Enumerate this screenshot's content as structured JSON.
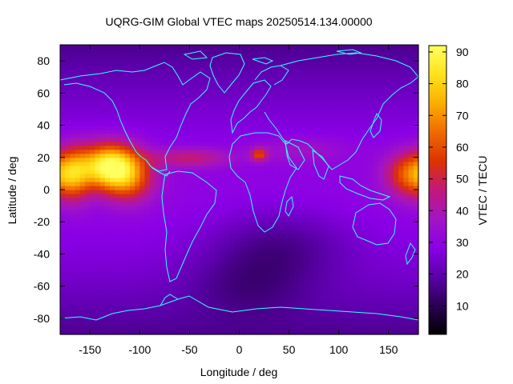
{
  "chart_data": {
    "type": "heatmap",
    "title": "UQRG-GIM Global VTEC maps 20250514.134.00000",
    "xlabel": "Longitude / deg",
    "ylabel": "Latitude / deg",
    "colorbar_label": "VTEC / TECU",
    "xlim": [
      -180,
      180
    ],
    "ylim": [
      -90,
      90
    ],
    "xticks": [
      -150,
      -100,
      -50,
      0,
      50,
      100,
      150
    ],
    "yticks": [
      -80,
      -60,
      -40,
      -20,
      0,
      20,
      40,
      60,
      80
    ],
    "clim": [
      1,
      92
    ],
    "colorbar_ticks": [
      10,
      20,
      30,
      40,
      50,
      60,
      70,
      80,
      90
    ],
    "colormap": [
      "#000000",
      "#2b0053",
      "#5a00a8",
      "#8a00e6",
      "#a314c4",
      "#c2187a",
      "#dd3300",
      "#f06a00",
      "#fbae00",
      "#ffe21a",
      "#ffff60"
    ],
    "coastline_color": "#33ffff",
    "grid_resolution_deg": {
      "lon": 5,
      "lat": 2.5
    },
    "features": [
      {
        "lon": -130,
        "lat": 15,
        "amp": 62,
        "slon": 30,
        "slat": 14
      },
      {
        "lon": -110,
        "lat": 5,
        "amp": 22,
        "slon": 25,
        "slat": 14
      },
      {
        "lon": -165,
        "lat": 10,
        "amp": 20,
        "slon": 16,
        "slat": 18
      },
      {
        "lon": 175,
        "lat": 10,
        "amp": 38,
        "slon": 26,
        "slat": 14
      },
      {
        "lon": 20,
        "lat": 22,
        "amp": 28,
        "slon": 8,
        "slat": 4
      },
      {
        "lon": -50,
        "lat": 20,
        "amp": 18,
        "slon": 40,
        "slat": 6
      },
      {
        "lon": 60,
        "lat": 25,
        "amp": 8,
        "slon": 50,
        "slat": 8
      },
      {
        "lon": 40,
        "lat": -35,
        "amp": -12,
        "slon": 70,
        "slat": 22
      },
      {
        "lon": 10,
        "lat": -60,
        "amp": -10,
        "slon": 60,
        "slat": 20
      }
    ],
    "background_vtec": 30
  }
}
